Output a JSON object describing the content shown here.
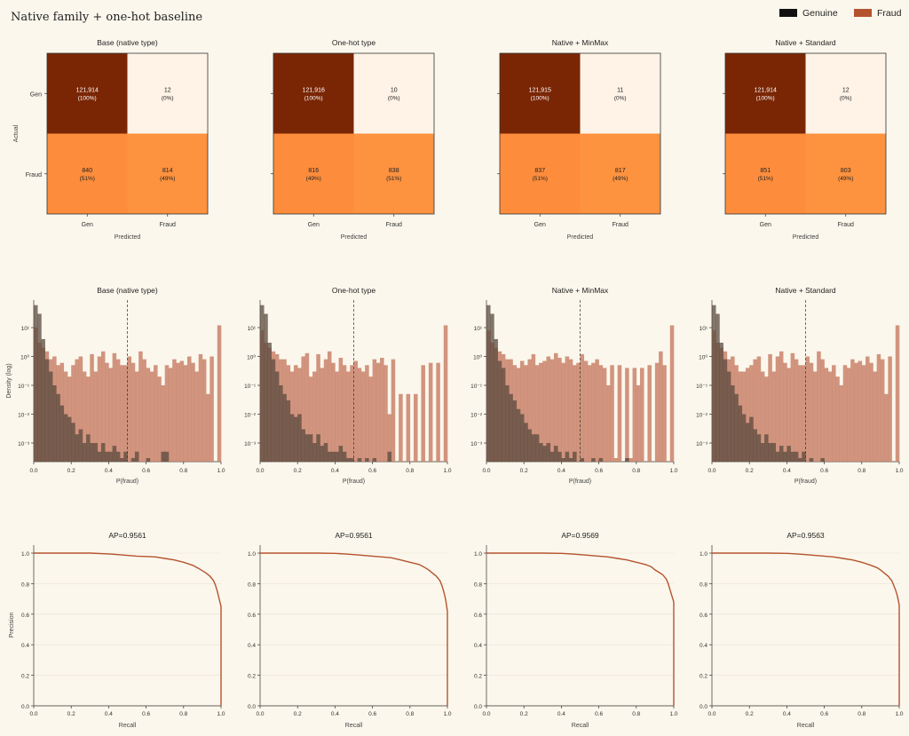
{
  "figure": {
    "title": "Native family + one-hot baseline",
    "legend": [
      {
        "label": "Genuine",
        "color": "#111111"
      },
      {
        "label": "Fraud",
        "color": "#b5532f"
      }
    ]
  },
  "colors": {
    "background": "#fbf7ec",
    "cm_dark": "#7a2605",
    "cm_light": "#fff3e7",
    "cm_orange": "#fd8d3c",
    "cm_orange2": "#fd923f",
    "genuine_hist": "#5a4a3f",
    "fraud_hist": "#c9826b",
    "pr_line": "#b5532f"
  },
  "labels": {
    "cm_xlabel": "Predicted",
    "cm_ylabel": "Actual",
    "cm_classes": [
      "Gen",
      "Fraud"
    ],
    "hist_xlabel": "P(fraud)",
    "hist_ylabel": "Density (log)",
    "hist_yticks": [
      "10¹",
      "10⁰",
      "10⁻¹",
      "10⁻²",
      "10⁻³"
    ],
    "pr_xlabel": "Recall",
    "pr_ylabel": "Precision",
    "ticks01": [
      "0.0",
      "0.2",
      "0.4",
      "0.6",
      "0.8",
      "1.0"
    ]
  },
  "chart_data": [
    {
      "type": "heatmap",
      "title": "Base (native type)",
      "cells": [
        [
          {
            "count": "121,914",
            "pct": "(100%)"
          },
          {
            "count": "12",
            "pct": "(0%)"
          }
        ],
        [
          {
            "count": "840",
            "pct": "(51%)"
          },
          {
            "count": "814",
            "pct": "(49%)"
          }
        ]
      ]
    },
    {
      "type": "heatmap",
      "title": "One-hot type",
      "cells": [
        [
          {
            "count": "121,916",
            "pct": "(100%)"
          },
          {
            "count": "10",
            "pct": "(0%)"
          }
        ],
        [
          {
            "count": "816",
            "pct": "(49%)"
          },
          {
            "count": "838",
            "pct": "(51%)"
          }
        ]
      ]
    },
    {
      "type": "heatmap",
      "title": "Native + MinMax",
      "cells": [
        [
          {
            "count": "121,915",
            "pct": "(100%)"
          },
          {
            "count": "11",
            "pct": "(0%)"
          }
        ],
        [
          {
            "count": "837",
            "pct": "(51%)"
          },
          {
            "count": "817",
            "pct": "(49%)"
          }
        ]
      ]
    },
    {
      "type": "heatmap",
      "title": "Native + Standard",
      "cells": [
        [
          {
            "count": "121,914",
            "pct": "(100%)"
          },
          {
            "count": "12",
            "pct": "(0%)"
          }
        ],
        [
          {
            "count": "851",
            "pct": "(51%)"
          },
          {
            "count": "803",
            "pct": "(49%)"
          }
        ]
      ]
    },
    {
      "type": "bar",
      "title": "Base (native type)",
      "threshold": 0.5,
      "yscale": "log",
      "genuine": [
        60,
        30,
        4,
        0.8,
        0.3,
        0.1,
        0.05,
        0.02,
        0.01,
        0.008,
        0.005,
        0.002,
        0.003,
        0.001,
        0.002,
        0.001,
        0.001,
        0.0005,
        0.001,
        0.0005,
        0.0005,
        0.0008,
        0.0005,
        0.0003,
        0.0005,
        0.0002,
        0.0003,
        0.0005,
        0.0002,
        0.0002,
        0.0003,
        0.0001,
        0.0001,
        0.0001,
        0.0005,
        0.0005,
        0.0001,
        0.0001,
        0.0001,
        0.0001,
        0.0001,
        0.0001,
        0.0001,
        0.0001,
        0.0001,
        0.0001,
        0.0001,
        0.0001,
        0.0001,
        0.0001
      ],
      "fraud": [
        10,
        3,
        2,
        1.5,
        0.8,
        1,
        0.5,
        0.6,
        0.3,
        0.2,
        0.5,
        0.8,
        1,
        0.3,
        0.2,
        1.2,
        0.3,
        1,
        1.5,
        0.6,
        0.4,
        1.3,
        0.8,
        0.5,
        0.5,
        1,
        0.6,
        0.3,
        1.5,
        0.8,
        0.4,
        0.3,
        0.5,
        0.2,
        0.1,
        0.5,
        0.4,
        0.8,
        0.6,
        0.7,
        0.5,
        1,
        0.6,
        0.3,
        1.2,
        0.8,
        0.05,
        1,
        0.0001,
        12
      ]
    },
    {
      "type": "bar",
      "title": "One-hot type",
      "threshold": 0.5,
      "yscale": "log",
      "genuine": [
        60,
        30,
        3,
        0.8,
        0.3,
        0.1,
        0.05,
        0.03,
        0.01,
        0.008,
        0.01,
        0.003,
        0.002,
        0.002,
        0.001,
        0.002,
        0.0008,
        0.001,
        0.0005,
        0.0005,
        0.0005,
        0.0008,
        0.0005,
        0.0003,
        0.0003,
        0.0002,
        0.0003,
        0.0002,
        0.0003,
        0.0002,
        0.0003,
        0.0001,
        0.0001,
        0.0001,
        0.0005,
        0.0001,
        0.0001,
        0.0001,
        0.0001,
        0.0001,
        0.0001,
        0.0001,
        0.0001,
        0.0001,
        0.0001,
        0.0001,
        0.0001,
        0.0001,
        0.0001,
        0.0001
      ],
      "fraud": [
        8,
        3,
        2,
        1.5,
        1.2,
        0.8,
        0.8,
        0.5,
        0.3,
        0.5,
        0.4,
        1,
        1.3,
        0.2,
        0.3,
        1.2,
        0.4,
        0.8,
        1.5,
        0.6,
        0.3,
        0.9,
        0.5,
        0.3,
        0.5,
        0.7,
        0.4,
        0.3,
        0.5,
        0.2,
        0.8,
        0.6,
        0.9,
        0.5,
        0.01,
        0.8,
        0.0001,
        0.05,
        0.0001,
        0.05,
        0.0001,
        0.05,
        0.0001,
        0.5,
        0.0001,
        0.6,
        0.0001,
        0.6,
        0.0001,
        12
      ]
    },
    {
      "type": "bar",
      "title": "Native + MinMax",
      "threshold": 0.5,
      "yscale": "log",
      "genuine": [
        60,
        30,
        4,
        0.7,
        0.4,
        0.1,
        0.05,
        0.03,
        0.015,
        0.01,
        0.005,
        0.003,
        0.002,
        0.002,
        0.001,
        0.0008,
        0.001,
        0.0005,
        0.0008,
        0.0005,
        0.0003,
        0.0005,
        0.0003,
        0.0005,
        0.0002,
        0.0003,
        0.0002,
        0.0002,
        0.0003,
        0.0002,
        0.0003,
        0.0001,
        0.0001,
        0.0001,
        0.0001,
        0.0001,
        0.0001,
        0.0003,
        0.0001,
        0.0001,
        0.0001,
        0.0001,
        0.0001,
        0.0001,
        0.0001,
        0.0001,
        0.0001,
        0.0001,
        0.0001,
        0.0001
      ],
      "fraud": [
        8,
        3,
        2,
        1.5,
        1.2,
        0.8,
        0.8,
        0.5,
        0.4,
        0.7,
        0.5,
        0.8,
        1.2,
        0.5,
        0.6,
        0.7,
        1,
        0.8,
        1.3,
        0.9,
        0.6,
        1,
        0.8,
        0.5,
        0.6,
        1.2,
        0.7,
        0.5,
        0.6,
        0.8,
        0.5,
        0.4,
        0.1,
        0.5,
        0.0003,
        0.5,
        0.0001,
        0.4,
        0.0003,
        0.4,
        0.1,
        0.4,
        0.0001,
        0.5,
        0.0001,
        0.6,
        1.5,
        0.5,
        0.0001,
        12
      ]
    },
    {
      "type": "bar",
      "title": "Native + Standard",
      "threshold": 0.5,
      "yscale": "log",
      "genuine": [
        60,
        30,
        3,
        0.8,
        0.3,
        0.1,
        0.05,
        0.02,
        0.01,
        0.005,
        0.008,
        0.003,
        0.002,
        0.001,
        0.002,
        0.001,
        0.001,
        0.0005,
        0.0008,
        0.0005,
        0.0008,
        0.0005,
        0.0005,
        0.0003,
        0.0005,
        0.0002,
        0.0003,
        0.0002,
        0.0002,
        0.0003,
        0.0001,
        0.0001,
        0.0001,
        0.0001,
        0.0001,
        0.0001,
        0.0001,
        0.0001,
        0.0001,
        0.0001,
        0.0001,
        0.0001,
        0.0001,
        0.0001,
        0.0001,
        0.0001,
        0.0001,
        0.0001,
        0.0001,
        0.0001
      ],
      "fraud": [
        8,
        3,
        2,
        1.5,
        0.8,
        1,
        0.5,
        0.3,
        0.3,
        0.4,
        0.5,
        0.8,
        1,
        0.3,
        0.2,
        1.2,
        0.3,
        1,
        1.5,
        0.6,
        0.4,
        1.3,
        0.8,
        0.5,
        0.5,
        1,
        0.6,
        0.3,
        1.5,
        0.8,
        0.4,
        0.3,
        0.5,
        0.2,
        0.1,
        0.5,
        0.4,
        0.8,
        0.6,
        0.7,
        0.5,
        1,
        0.6,
        0.3,
        1.2,
        0.8,
        0.05,
        1,
        0.0001,
        12
      ]
    },
    {
      "type": "line",
      "title": "AP=0.9561",
      "x": [
        0,
        0.1,
        0.2,
        0.3,
        0.4,
        0.45,
        0.5,
        0.55,
        0.6,
        0.65,
        0.7,
        0.75,
        0.8,
        0.85,
        0.88,
        0.9,
        0.92,
        0.94,
        0.96,
        0.97,
        0.98,
        0.99,
        1.0,
        1.0
      ],
      "y": [
        1.0,
        1.0,
        1.0,
        1.0,
        0.995,
        0.99,
        0.985,
        0.98,
        0.978,
        0.975,
        0.965,
        0.955,
        0.94,
        0.92,
        0.9,
        0.885,
        0.87,
        0.85,
        0.82,
        0.79,
        0.75,
        0.7,
        0.65,
        0.0
      ]
    },
    {
      "type": "line",
      "title": "AP=0.9561",
      "x": [
        0,
        0.1,
        0.2,
        0.3,
        0.4,
        0.45,
        0.5,
        0.55,
        0.6,
        0.65,
        0.7,
        0.75,
        0.8,
        0.85,
        0.88,
        0.9,
        0.92,
        0.94,
        0.96,
        0.97,
        0.98,
        0.99,
        1.0,
        1.0
      ],
      "y": [
        1.0,
        1.0,
        1.0,
        1.0,
        0.998,
        0.995,
        0.99,
        0.985,
        0.98,
        0.975,
        0.97,
        0.955,
        0.94,
        0.925,
        0.905,
        0.89,
        0.87,
        0.85,
        0.82,
        0.79,
        0.75,
        0.7,
        0.62,
        0.0
      ]
    },
    {
      "type": "line",
      "title": "AP=0.9569",
      "x": [
        0,
        0.1,
        0.2,
        0.3,
        0.4,
        0.45,
        0.5,
        0.55,
        0.6,
        0.65,
        0.7,
        0.75,
        0.8,
        0.85,
        0.88,
        0.9,
        0.92,
        0.94,
        0.96,
        0.97,
        0.98,
        0.99,
        1.0,
        1.0
      ],
      "y": [
        1.0,
        1.0,
        1.0,
        1.0,
        0.998,
        0.995,
        0.99,
        0.985,
        0.98,
        0.975,
        0.965,
        0.955,
        0.94,
        0.925,
        0.91,
        0.89,
        0.875,
        0.86,
        0.83,
        0.8,
        0.76,
        0.72,
        0.68,
        0.0
      ]
    },
    {
      "type": "line",
      "title": "AP=0.9563",
      "x": [
        0,
        0.1,
        0.2,
        0.3,
        0.4,
        0.45,
        0.5,
        0.55,
        0.6,
        0.65,
        0.7,
        0.75,
        0.8,
        0.85,
        0.88,
        0.9,
        0.92,
        0.94,
        0.96,
        0.97,
        0.98,
        0.99,
        1.0,
        1.0
      ],
      "y": [
        1.0,
        1.0,
        1.0,
        1.0,
        0.998,
        0.995,
        0.99,
        0.985,
        0.98,
        0.975,
        0.965,
        0.955,
        0.94,
        0.92,
        0.905,
        0.89,
        0.87,
        0.85,
        0.82,
        0.79,
        0.76,
        0.72,
        0.66,
        0.0
      ]
    }
  ]
}
